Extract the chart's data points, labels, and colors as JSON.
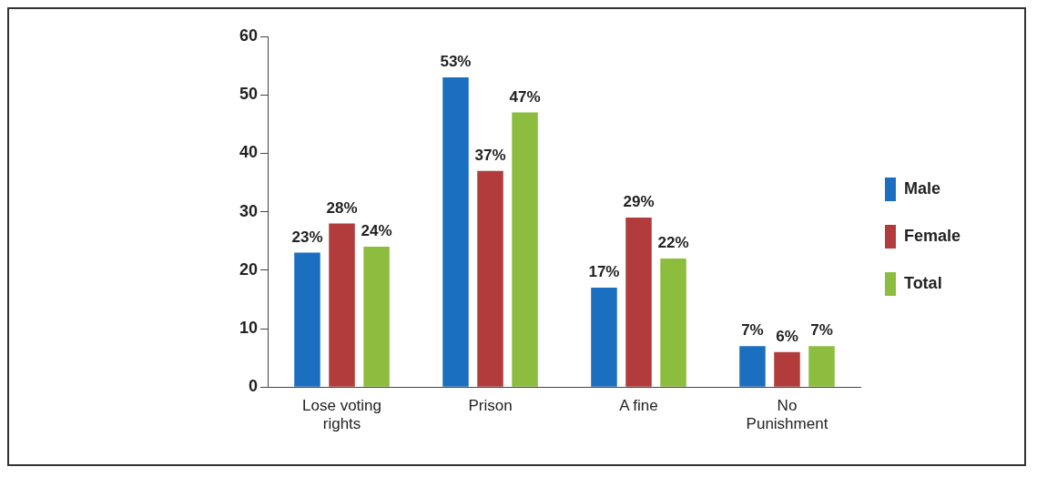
{
  "chart_data": {
    "type": "bar",
    "categories": [
      "Lose voting rights",
      "Prison",
      "A fine",
      "No Punishment"
    ],
    "series": [
      {
        "name": "Male",
        "color": "#1b6fc0",
        "values": [
          23,
          53,
          17,
          7
        ],
        "value_labels": [
          "23%",
          "53%",
          "17%",
          "7%"
        ]
      },
      {
        "name": "Female",
        "color": "#b23c3c",
        "values": [
          28,
          37,
          29,
          6
        ],
        "value_labels": [
          "28%",
          "37%",
          "29%",
          "6%"
        ]
      },
      {
        "name": "Total",
        "color": "#8dbd3e",
        "values": [
          24,
          47,
          22,
          7
        ],
        "value_labels": [
          "24%",
          "47%",
          "22%",
          "7%"
        ]
      }
    ],
    "ylim": [
      0,
      60
    ],
    "yticks": [
      0,
      10,
      20,
      30,
      40,
      50,
      60
    ],
    "grid": false,
    "legend": "right"
  }
}
